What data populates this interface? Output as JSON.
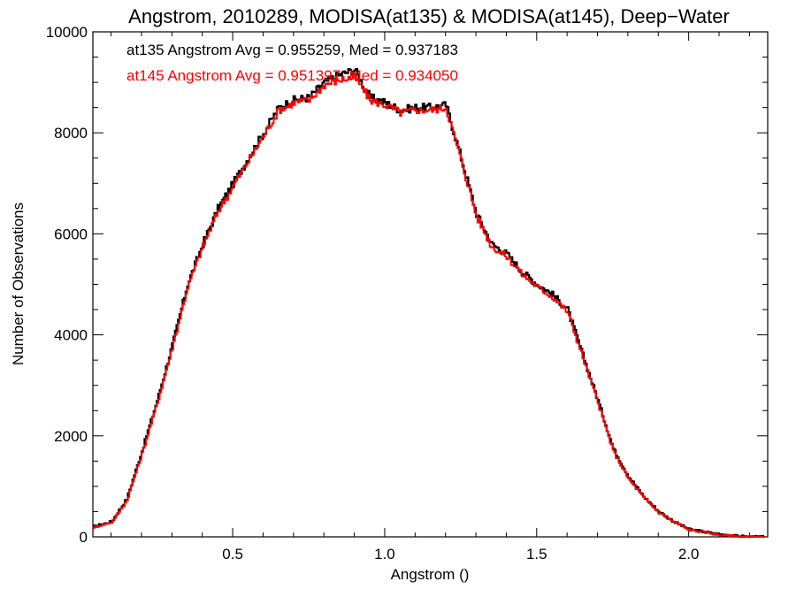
{
  "chart_data": {
    "type": "line",
    "title": "Angstrom, 2010289, MODISA(at135) & MODISA(at145), Deep−Water",
    "xlabel": "Angstrom ()",
    "ylabel": "Number of Observations",
    "xlim": [
      0.04,
      2.26
    ],
    "ylim": [
      0,
      10000
    ],
    "x_ticks": [
      0.5,
      1.0,
      1.5,
      2.0
    ],
    "x_tick_labels": [
      "0.5",
      "1.0",
      "1.5",
      "2.0"
    ],
    "y_ticks": [
      0,
      2000,
      4000,
      6000,
      8000,
      10000
    ],
    "y_tick_labels": [
      "0",
      "2000",
      "4000",
      "6000",
      "8000",
      "10000"
    ],
    "grid": false,
    "style": "step",
    "annotations": [
      {
        "text": "at135 Angstrom Avg = 0.955259, Med = 0.937183",
        "color": "#000000"
      },
      {
        "text": "at145 Angstrom Avg = 0.951397, Med = 0.934050",
        "color": "#ff0000"
      }
    ],
    "series": [
      {
        "color": "#000000",
        "x": [
          0.04,
          0.1,
          0.15,
          0.2,
          0.25,
          0.3,
          0.35,
          0.4,
          0.45,
          0.5,
          0.55,
          0.6,
          0.65,
          0.7,
          0.75,
          0.8,
          0.85,
          0.9,
          0.95,
          1.0,
          1.05,
          1.1,
          1.15,
          1.2,
          1.25,
          1.3,
          1.35,
          1.4,
          1.45,
          1.5,
          1.55,
          1.6,
          1.65,
          1.7,
          1.75,
          1.8,
          1.85,
          1.9,
          1.95,
          2.0,
          2.05,
          2.1,
          2.15,
          2.2,
          2.25
        ],
        "y": [
          200,
          300,
          750,
          1700,
          2700,
          3800,
          5000,
          5800,
          6500,
          7000,
          7500,
          8000,
          8500,
          8650,
          8700,
          9000,
          9150,
          9250,
          8700,
          8600,
          8450,
          8500,
          8500,
          8550,
          7500,
          6400,
          5800,
          5600,
          5250,
          5000,
          4800,
          4500,
          3600,
          2700,
          1750,
          1200,
          800,
          500,
          300,
          150,
          100,
          50,
          20,
          0,
          0
        ]
      },
      {
        "color": "#ff0000",
        "x": [
          0.04,
          0.1,
          0.15,
          0.2,
          0.25,
          0.3,
          0.35,
          0.4,
          0.45,
          0.5,
          0.55,
          0.6,
          0.65,
          0.7,
          0.75,
          0.8,
          0.85,
          0.9,
          0.95,
          1.0,
          1.05,
          1.1,
          1.15,
          1.2,
          1.25,
          1.3,
          1.35,
          1.4,
          1.45,
          1.5,
          1.55,
          1.6,
          1.65,
          1.7,
          1.75,
          1.8,
          1.85,
          1.9,
          1.95,
          2.0,
          2.05,
          2.1,
          2.15,
          2.2,
          2.25
        ],
        "y": [
          190,
          290,
          720,
          1650,
          2650,
          3750,
          4950,
          5750,
          6450,
          6950,
          7450,
          7950,
          8450,
          8600,
          8650,
          8950,
          9050,
          9100,
          8650,
          8550,
          8400,
          8450,
          8450,
          8500,
          7450,
          6350,
          5750,
          5550,
          5200,
          4950,
          4750,
          4450,
          3550,
          2650,
          1700,
          1150,
          780,
          480,
          290,
          140,
          90,
          40,
          15,
          0,
          0
        ]
      }
    ]
  }
}
